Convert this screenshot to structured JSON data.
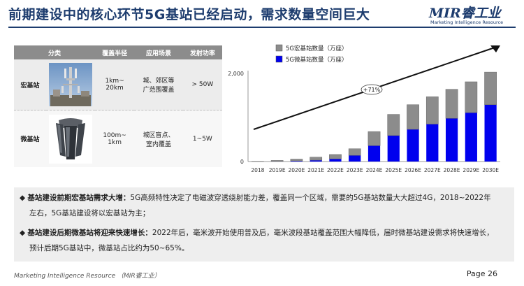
{
  "header": {
    "title": "前期建设中的核心环节5G基站已经启动，需求数量空间巨大",
    "logo_main": "MIR睿工业",
    "logo_sub": "Marketing Intelligence Resource"
  },
  "table": {
    "headers": [
      "分类",
      "覆盖半径",
      "应用场景",
      "发射功率"
    ],
    "rows": [
      {
        "type": "宏基站",
        "radius": "1km~\n20km",
        "scene": "城、郊区等\n广范围覆盖",
        "power": "> 50W"
      },
      {
        "type": "微基站",
        "radius": "100m~\n1km",
        "scene": "城区盲点、\n室内覆盖",
        "power": "1~5W"
      }
    ]
  },
  "chart_data": {
    "type": "bar",
    "stacked": true,
    "categories": [
      "2018",
      "2019E",
      "2020E",
      "2021E",
      "2022E",
      "2023E",
      "2024E",
      "2025E",
      "2026E",
      "2027E",
      "2028E",
      "2029E",
      "2030E"
    ],
    "series": [
      {
        "name": "5G宏基站数量（万座）",
        "color": "#8c8c8c",
        "values": [
          5,
          20,
          40,
          70,
          100,
          150,
          320,
          480,
          560,
          620,
          660,
          700,
          740
        ]
      },
      {
        "name": "5G微基站数量（万座）",
        "color": "#0000ee",
        "values": [
          0,
          5,
          15,
          30,
          60,
          140,
          360,
          590,
          730,
          850,
          980,
          1110,
          1290
        ]
      }
    ],
    "yticks": [
      "0",
      "2,000"
    ],
    "ylim": [
      0,
      2000
    ],
    "annotation": "+71%",
    "legend": "top-left"
  },
  "notes": [
    {
      "bold": "基站建设前期宏基站需求大增：",
      "text": "5G高频特性决定了电磁波穿透绕射能力差，覆盖同一个区域，需要的5G基站数量大大超过4G，2018~2022年",
      "text2": "左右，5G基站建设将以宏基站为主；"
    },
    {
      "bold": "基站建设后期微基站将迎来快速增长：",
      "text": "2022年后，毫米波开始使用普及后，毫米波段基站覆盖范围大幅降低，届时微基站建设需求将快速增长，",
      "text2": "预计后期5G基站中，微基站占比约为50~65%。"
    }
  ],
  "footer": {
    "text": "Marketing Intelligence Resource （MIR睿工业）",
    "page": "Page 26"
  }
}
